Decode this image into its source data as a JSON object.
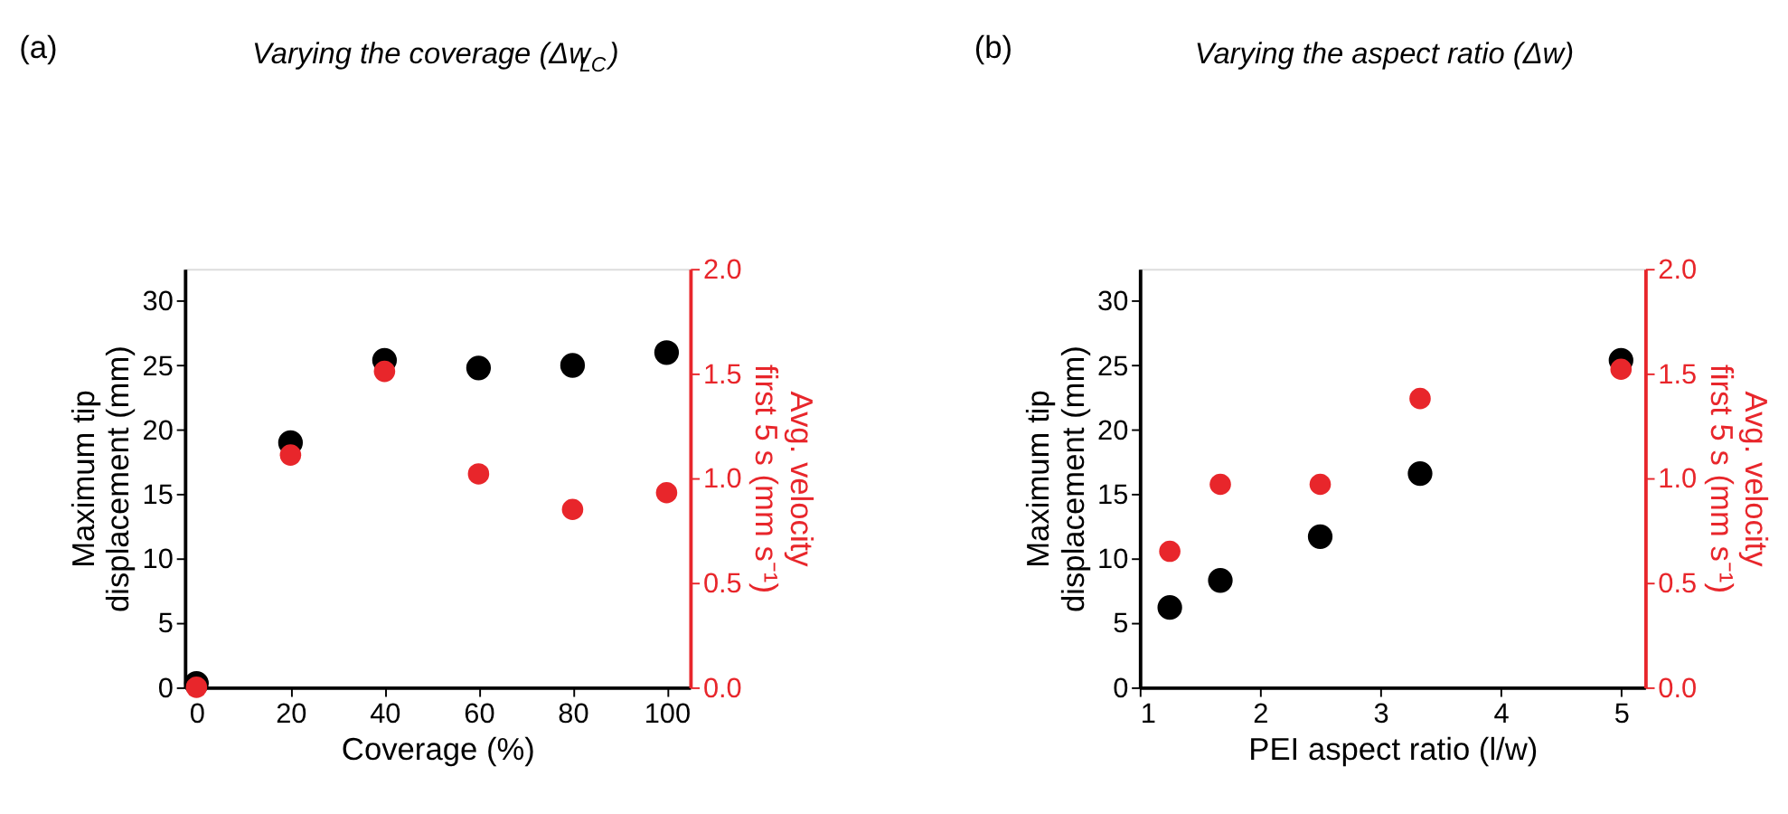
{
  "chart_data": [
    {
      "type": "scatter",
      "title": "Varying the coverage (Δw$_{LC}$)",
      "annotations": [
        "(a)"
      ],
      "xlabel": "Coverage (%)",
      "ylabel": "Maximum tip\ndisplacement (mm)",
      "y2label": "Avg. velocity\nfirst 5 s (mm s⁻¹)",
      "x": [
        0,
        20,
        40,
        60,
        80,
        100
      ],
      "series": [
        {
          "color": "#000000",
          "values": [
            0.3,
            19.0,
            25.4,
            24.8,
            25.0,
            26.0
          ]
        },
        {
          "color": "#e8262b",
          "axis": "y2",
          "values": [
            0.0,
            1.11,
            1.51,
            1.02,
            0.85,
            0.93
          ]
        }
      ],
      "xlim": [
        -2.5,
        105
      ],
      "xticks": [
        0,
        20,
        40,
        60,
        80,
        100
      ],
      "ylim": [
        0,
        32.5
      ],
      "yticks": [
        0,
        5,
        10,
        15,
        20,
        25,
        30
      ],
      "y2lim": [
        0,
        2.0
      ],
      "y2ticks": [
        {
          "value": 0,
          "label": "0.0"
        },
        {
          "value": 0.5,
          "label": "0.5"
        },
        {
          "value": 1,
          "label": "1.0"
        },
        {
          "value": 1.5,
          "label": "1.5"
        },
        {
          "value": 2,
          "label": "2.0"
        }
      ],
      "marker": "circle",
      "grid": false
    },
    {
      "type": "scatter",
      "title": "Varying the aspect ratio (Δw)",
      "annotations": [
        "(b)"
      ],
      "xlabel": "PEI aspect ratio (l/w)",
      "ylabel": "Maximum tip\ndisplacement (mm)",
      "y2label": "Avg. velocity\nfirst 5 s (mm s⁻¹)",
      "x": [
        1.25,
        1.67,
        2.5,
        3.33,
        5
      ],
      "series": [
        {
          "color": "#000000",
          "values": [
            6.2,
            8.3,
            11.7,
            16.6,
            25.4
          ]
        },
        {
          "color": "#e8262b",
          "axis": "y2",
          "values": [
            0.65,
            0.97,
            0.97,
            1.38,
            1.52
          ]
        }
      ],
      "xlim": [
        1,
        5.2
      ],
      "xticks": [
        1,
        2,
        3,
        4,
        5
      ],
      "ylim": [
        0,
        32.5
      ],
      "yticks": [
        0,
        5,
        10,
        15,
        20,
        25,
        30
      ],
      "y2lim": [
        0,
        2.0
      ],
      "y2ticks": [
        {
          "value": 0,
          "label": "0.0"
        },
        {
          "value": 0.5,
          "label": "0.5"
        },
        {
          "value": 1,
          "label": "1.0"
        },
        {
          "value": 1.5,
          "label": "1.5"
        },
        {
          "value": 2,
          "label": "2.0"
        }
      ],
      "marker": "circle",
      "grid": false
    }
  ]
}
